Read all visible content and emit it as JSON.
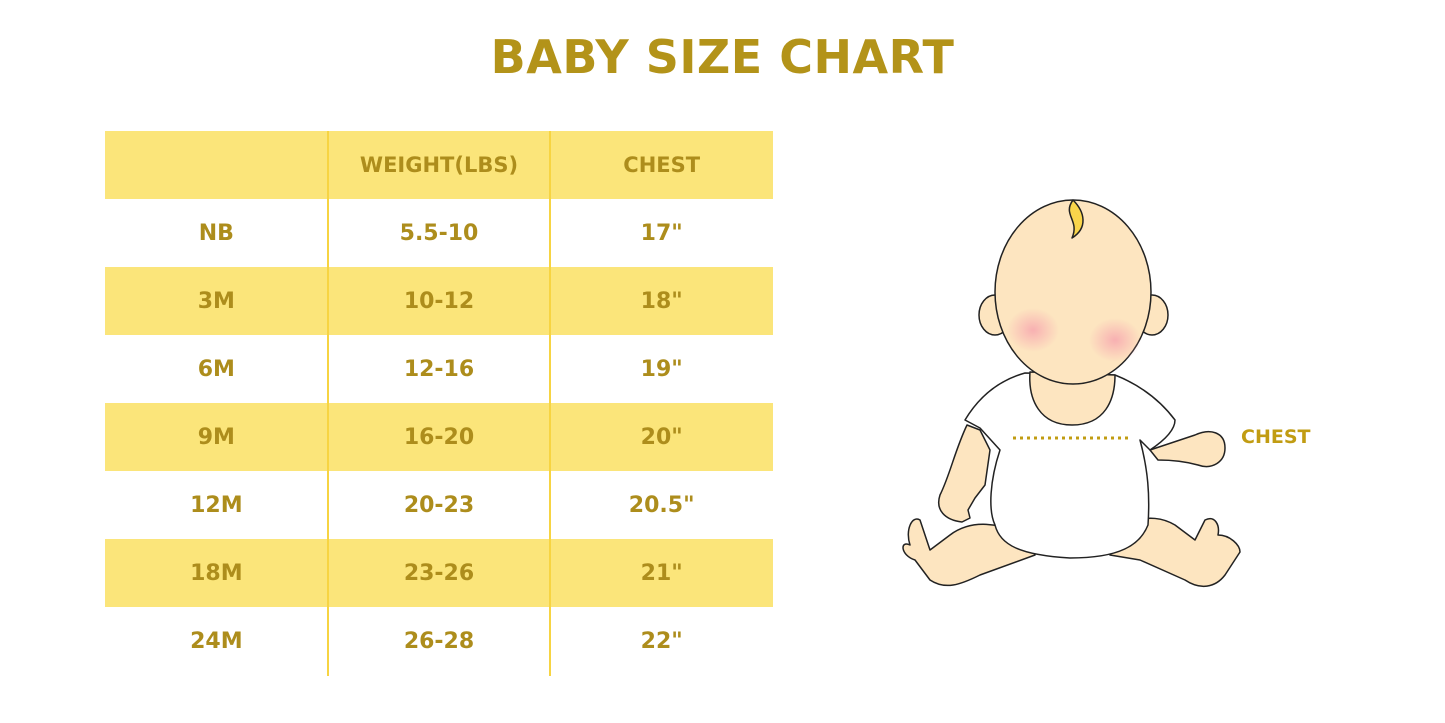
{
  "title": "BABY SIZE CHART",
  "table": {
    "headers": [
      "",
      "WEIGHT(LBS)",
      "CHEST"
    ],
    "rows": [
      [
        "NB",
        "5.5-10",
        "17\""
      ],
      [
        "3M",
        "10-12",
        "18\""
      ],
      [
        "6M",
        "12-16",
        "19\""
      ],
      [
        "9M",
        "16-20",
        "20\""
      ],
      [
        "12M",
        "20-23",
        "20.5\""
      ],
      [
        "18M",
        "23-26",
        "21\""
      ],
      [
        "24M",
        "26-28",
        "22\""
      ]
    ]
  },
  "illustration": {
    "chest_label": "CHEST"
  },
  "colors": {
    "text": "#ad8d1c",
    "stripe": "#fbe57a",
    "divider": "#f7d442",
    "skin": "#fde5c0",
    "cheek": "#f7b5b8"
  }
}
